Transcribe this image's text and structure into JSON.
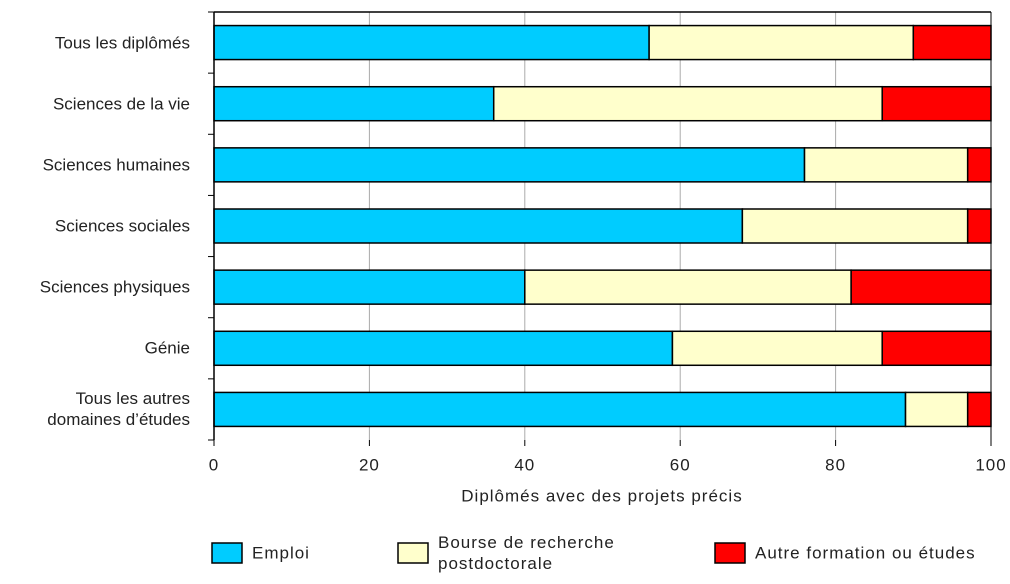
{
  "chart_data": {
    "type": "stacked-barh",
    "categories": [
      "Tous les diplômés",
      "Sciences de la vie",
      "Sciences humaines",
      "Sciences sociales",
      "Sciences physiques",
      "Génie",
      "Tous les autres\ndomaines d’études"
    ],
    "series": [
      {
        "name": "Emploi",
        "color": "#00ccff",
        "values": [
          56,
          36,
          76,
          68,
          40,
          59,
          89
        ]
      },
      {
        "name": "Bourse de recherche\npostdoctorale",
        "color": "#ffffcc",
        "values": [
          34,
          50,
          21,
          29,
          42,
          27,
          8
        ]
      },
      {
        "name": "Autre formation ou études",
        "color": "#ff0000",
        "values": [
          10,
          14,
          3,
          3,
          18,
          14,
          3
        ]
      }
    ],
    "xlabel": "Diplômés avec des projets précis",
    "xlim": [
      0,
      100
    ],
    "xticks": [
      0,
      20,
      40,
      60,
      80,
      100
    ],
    "grid": true
  }
}
